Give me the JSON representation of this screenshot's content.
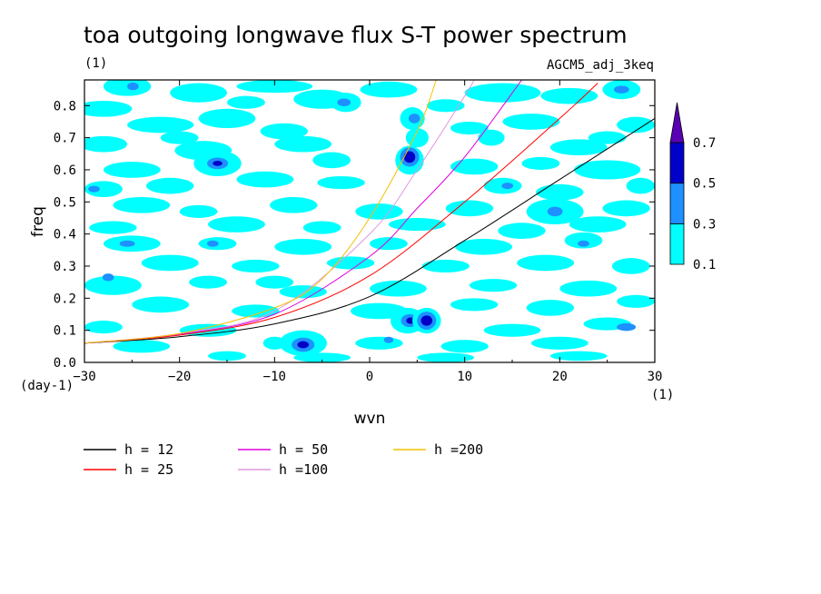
{
  "chart_data": {
    "type": "contour",
    "title": "toa outgoing longwave flux S-T power spectrum",
    "subtitle_left": "(1)",
    "subtitle_right": "AGCM5_adj_3keq",
    "xlabel": "wvn",
    "ylabel": "freq",
    "x_unit_label": "(1)",
    "y_unit_label": "(day-1)",
    "xlim": [
      -30,
      30
    ],
    "ylim": [
      0,
      0.88
    ],
    "x_ticks": [
      -30,
      -20,
      -10,
      0,
      10,
      20,
      30
    ],
    "x_tick_labels": [
      "−30",
      "−20",
      "−10",
      "0",
      "10",
      "20",
      "30"
    ],
    "y_ticks": [
      0,
      0.1,
      0.2,
      0.3,
      0.4,
      0.5,
      0.6,
      0.7,
      0.8
    ],
    "y_tick_labels": [
      "0.0",
      "0.1",
      "0.2",
      "0.3",
      "0.4",
      "0.5",
      "0.6",
      "0.7",
      "0.8"
    ],
    "contour_levels": [
      0.1,
      0.3,
      0.5,
      0.7
    ],
    "contour_level_labels": [
      "0.1",
      "0.3",
      "0.5",
      "0.7"
    ],
    "contour_colors": [
      "#00ffff",
      "#1e90ff",
      "#0000c8",
      "#5a00b4"
    ],
    "dispersion_curves": [
      {
        "name": "h = 12",
        "color": "#000000",
        "x": [
          -30,
          -20,
          -10,
          0,
          10,
          20,
          30
        ],
        "y": [
          0.06,
          0.08,
          0.12,
          0.205,
          0.38,
          0.57,
          0.76
        ]
      },
      {
        "name": "h = 25",
        "color": "#ff0000",
        "x": [
          -30,
          -20,
          -10,
          0,
          10,
          20,
          24
        ],
        "y": [
          0.06,
          0.085,
          0.14,
          0.27,
          0.5,
          0.76,
          0.87
        ]
      },
      {
        "name": "h = 50",
        "color": "#e000e0",
        "x": [
          -30,
          -20,
          -10,
          0,
          5,
          10,
          16
        ],
        "y": [
          0.06,
          0.088,
          0.15,
          0.33,
          0.48,
          0.64,
          0.88
        ]
      },
      {
        "name": "h =100",
        "color": "#dd99dd",
        "x": [
          -30,
          -20,
          -10,
          0,
          5,
          10,
          11
        ],
        "y": [
          0.06,
          0.09,
          0.16,
          0.4,
          0.6,
          0.83,
          0.88
        ]
      },
      {
        "name": "h =200",
        "color": "#f2c200",
        "x": [
          -30,
          -20,
          -10,
          -5,
          0,
          5,
          7
        ],
        "y": [
          0.06,
          0.09,
          0.17,
          0.26,
          0.45,
          0.72,
          0.88
        ]
      }
    ],
    "blobs": [
      {
        "x": -25.5,
        "y": 0.86,
        "rx": 2.5,
        "ry": 0.03,
        "level": 1
      },
      {
        "x": -24.9,
        "y": 0.86,
        "rx": 0.6,
        "ry": 0.012,
        "level": 2
      },
      {
        "x": -28,
        "y": 0.79,
        "rx": 3,
        "ry": 0.025,
        "level": 1
      },
      {
        "x": -18,
        "y": 0.84,
        "rx": 3,
        "ry": 0.03,
        "level": 1
      },
      {
        "x": -10,
        "y": 0.86,
        "rx": 4,
        "ry": 0.02,
        "level": 1
      },
      {
        "x": -5,
        "y": 0.82,
        "rx": 3,
        "ry": 0.03,
        "level": 1
      },
      {
        "x": -2.5,
        "y": 0.81,
        "rx": 1.6,
        "ry": 0.03,
        "level": 1
      },
      {
        "x": -2.7,
        "y": 0.81,
        "rx": 0.7,
        "ry": 0.012,
        "level": 2
      },
      {
        "x": 2,
        "y": 0.85,
        "rx": 3,
        "ry": 0.025,
        "level": 1
      },
      {
        "x": 14,
        "y": 0.84,
        "rx": 4,
        "ry": 0.03,
        "level": 1
      },
      {
        "x": 21,
        "y": 0.83,
        "rx": 3,
        "ry": 0.025,
        "level": 1
      },
      {
        "x": 26.5,
        "y": 0.85,
        "rx": 2,
        "ry": 0.03,
        "level": 1
      },
      {
        "x": 26.5,
        "y": 0.85,
        "rx": 0.8,
        "ry": 0.012,
        "level": 2
      },
      {
        "x": -22,
        "y": 0.74,
        "rx": 3.5,
        "ry": 0.025,
        "level": 1
      },
      {
        "x": -15,
        "y": 0.76,
        "rx": 3,
        "ry": 0.03,
        "level": 1
      },
      {
        "x": -9,
        "y": 0.72,
        "rx": 2.5,
        "ry": 0.025,
        "level": 1
      },
      {
        "x": 4.5,
        "y": 0.76,
        "rx": 1.3,
        "ry": 0.035,
        "level": 1
      },
      {
        "x": 4.7,
        "y": 0.76,
        "rx": 0.6,
        "ry": 0.015,
        "level": 2
      },
      {
        "x": 10.5,
        "y": 0.73,
        "rx": 2,
        "ry": 0.02,
        "level": 1
      },
      {
        "x": 17,
        "y": 0.75,
        "rx": 3,
        "ry": 0.025,
        "level": 1
      },
      {
        "x": 28,
        "y": 0.74,
        "rx": 2,
        "ry": 0.025,
        "level": 1
      },
      {
        "x": -28,
        "y": 0.68,
        "rx": 2.5,
        "ry": 0.025,
        "level": 1
      },
      {
        "x": -17.5,
        "y": 0.66,
        "rx": 3,
        "ry": 0.03,
        "level": 1
      },
      {
        "x": -7,
        "y": 0.68,
        "rx": 3,
        "ry": 0.025,
        "level": 1
      },
      {
        "x": 5,
        "y": 0.7,
        "rx": 1.2,
        "ry": 0.03,
        "level": 1
      },
      {
        "x": 12.8,
        "y": 0.7,
        "rx": 1.4,
        "ry": 0.025,
        "level": 1
      },
      {
        "x": 22,
        "y": 0.67,
        "rx": 3,
        "ry": 0.025,
        "level": 1
      },
      {
        "x": -16,
        "y": 0.62,
        "rx": 2.5,
        "ry": 0.04,
        "level": 1
      },
      {
        "x": -16,
        "y": 0.62,
        "rx": 1.1,
        "ry": 0.018,
        "level": 2
      },
      {
        "x": -16,
        "y": 0.62,
        "rx": 0.5,
        "ry": 0.008,
        "level": 3
      },
      {
        "x": -25,
        "y": 0.6,
        "rx": 3,
        "ry": 0.025,
        "level": 1
      },
      {
        "x": -4,
        "y": 0.63,
        "rx": 2,
        "ry": 0.025,
        "level": 1
      },
      {
        "x": 4.2,
        "y": 0.63,
        "rx": 1.5,
        "ry": 0.045,
        "level": 1
      },
      {
        "x": 4.2,
        "y": 0.64,
        "rx": 1,
        "ry": 0.03,
        "level": 2
      },
      {
        "x": 4.2,
        "y": 0.64,
        "rx": 0.6,
        "ry": 0.018,
        "level": 3
      },
      {
        "x": 11,
        "y": 0.61,
        "rx": 2.5,
        "ry": 0.025,
        "level": 1
      },
      {
        "x": 25,
        "y": 0.6,
        "rx": 3.5,
        "ry": 0.03,
        "level": 1
      },
      {
        "x": -28,
        "y": 0.54,
        "rx": 2,
        "ry": 0.025,
        "level": 1
      },
      {
        "x": -29,
        "y": 0.54,
        "rx": 0.6,
        "ry": 0.01,
        "level": 2
      },
      {
        "x": -21,
        "y": 0.55,
        "rx": 2.5,
        "ry": 0.025,
        "level": 1
      },
      {
        "x": -11,
        "y": 0.57,
        "rx": 3,
        "ry": 0.025,
        "level": 1
      },
      {
        "x": -3,
        "y": 0.56,
        "rx": 2.5,
        "ry": 0.02,
        "level": 1
      },
      {
        "x": 14,
        "y": 0.55,
        "rx": 2,
        "ry": 0.025,
        "level": 1
      },
      {
        "x": 14.5,
        "y": 0.55,
        "rx": 0.6,
        "ry": 0.01,
        "level": 2
      },
      {
        "x": 20,
        "y": 0.53,
        "rx": 2.5,
        "ry": 0.025,
        "level": 1
      },
      {
        "x": 28.5,
        "y": 0.55,
        "rx": 1.5,
        "ry": 0.025,
        "level": 1
      },
      {
        "x": -24,
        "y": 0.49,
        "rx": 3,
        "ry": 0.025,
        "level": 1
      },
      {
        "x": -18,
        "y": 0.47,
        "rx": 2,
        "ry": 0.02,
        "level": 1
      },
      {
        "x": -8,
        "y": 0.49,
        "rx": 2.5,
        "ry": 0.025,
        "level": 1
      },
      {
        "x": 1,
        "y": 0.47,
        "rx": 2.5,
        "ry": 0.025,
        "level": 1
      },
      {
        "x": 10.5,
        "y": 0.48,
        "rx": 2.5,
        "ry": 0.025,
        "level": 1
      },
      {
        "x": 19.5,
        "y": 0.47,
        "rx": 3,
        "ry": 0.04,
        "level": 1
      },
      {
        "x": 19.5,
        "y": 0.47,
        "rx": 0.8,
        "ry": 0.015,
        "level": 2
      },
      {
        "x": 27,
        "y": 0.48,
        "rx": 2.5,
        "ry": 0.025,
        "level": 1
      },
      {
        "x": -27,
        "y": 0.42,
        "rx": 2.5,
        "ry": 0.02,
        "level": 1
      },
      {
        "x": -14,
        "y": 0.43,
        "rx": 3,
        "ry": 0.025,
        "level": 1
      },
      {
        "x": -5,
        "y": 0.42,
        "rx": 2,
        "ry": 0.02,
        "level": 1
      },
      {
        "x": 5,
        "y": 0.43,
        "rx": 3,
        "ry": 0.02,
        "level": 1
      },
      {
        "x": 16,
        "y": 0.41,
        "rx": 2.5,
        "ry": 0.025,
        "level": 1
      },
      {
        "x": 24,
        "y": 0.43,
        "rx": 3,
        "ry": 0.025,
        "level": 1
      },
      {
        "x": -25,
        "y": 0.37,
        "rx": 3,
        "ry": 0.025,
        "level": 1
      },
      {
        "x": -25.5,
        "y": 0.37,
        "rx": 0.8,
        "ry": 0.01,
        "level": 2
      },
      {
        "x": -16,
        "y": 0.37,
        "rx": 2,
        "ry": 0.02,
        "level": 1
      },
      {
        "x": -16.5,
        "y": 0.37,
        "rx": 0.6,
        "ry": 0.01,
        "level": 2
      },
      {
        "x": -7,
        "y": 0.36,
        "rx": 3,
        "ry": 0.025,
        "level": 1
      },
      {
        "x": 2,
        "y": 0.37,
        "rx": 2,
        "ry": 0.02,
        "level": 1
      },
      {
        "x": 12,
        "y": 0.36,
        "rx": 3,
        "ry": 0.025,
        "level": 1
      },
      {
        "x": 22.5,
        "y": 0.38,
        "rx": 2,
        "ry": 0.025,
        "level": 1
      },
      {
        "x": 22.5,
        "y": 0.37,
        "rx": 0.6,
        "ry": 0.01,
        "level": 2
      },
      {
        "x": -21,
        "y": 0.31,
        "rx": 3,
        "ry": 0.025,
        "level": 1
      },
      {
        "x": -12,
        "y": 0.3,
        "rx": 2.5,
        "ry": 0.02,
        "level": 1
      },
      {
        "x": -2,
        "y": 0.31,
        "rx": 2.5,
        "ry": 0.02,
        "level": 1
      },
      {
        "x": 8,
        "y": 0.3,
        "rx": 2.5,
        "ry": 0.02,
        "level": 1
      },
      {
        "x": 18.5,
        "y": 0.31,
        "rx": 3,
        "ry": 0.025,
        "level": 1
      },
      {
        "x": 27.5,
        "y": 0.3,
        "rx": 2,
        "ry": 0.025,
        "level": 1
      },
      {
        "x": -27,
        "y": 0.24,
        "rx": 3,
        "ry": 0.03,
        "level": 1
      },
      {
        "x": -27.5,
        "y": 0.265,
        "rx": 0.6,
        "ry": 0.012,
        "level": 2
      },
      {
        "x": -17,
        "y": 0.25,
        "rx": 2,
        "ry": 0.02,
        "level": 1
      },
      {
        "x": -7,
        "y": 0.22,
        "rx": 2.5,
        "ry": 0.02,
        "level": 1
      },
      {
        "x": 3,
        "y": 0.23,
        "rx": 3,
        "ry": 0.025,
        "level": 1
      },
      {
        "x": 13,
        "y": 0.24,
        "rx": 2.5,
        "ry": 0.02,
        "level": 1
      },
      {
        "x": 23,
        "y": 0.23,
        "rx": 3,
        "ry": 0.025,
        "level": 1
      },
      {
        "x": -22,
        "y": 0.18,
        "rx": 3,
        "ry": 0.025,
        "level": 1
      },
      {
        "x": -12,
        "y": 0.16,
        "rx": 2.5,
        "ry": 0.02,
        "level": 1
      },
      {
        "x": 1,
        "y": 0.16,
        "rx": 3,
        "ry": 0.025,
        "level": 1
      },
      {
        "x": 11,
        "y": 0.18,
        "rx": 2.5,
        "ry": 0.02,
        "level": 1
      },
      {
        "x": 19,
        "y": 0.17,
        "rx": 2.5,
        "ry": 0.025,
        "level": 1
      },
      {
        "x": 28,
        "y": 0.19,
        "rx": 2,
        "ry": 0.02,
        "level": 1
      },
      {
        "x": 4,
        "y": 0.13,
        "rx": 1.8,
        "ry": 0.04,
        "level": 1
      },
      {
        "x": 4.2,
        "y": 0.13,
        "rx": 0.9,
        "ry": 0.02,
        "level": 2
      },
      {
        "x": 4.3,
        "y": 0.13,
        "rx": 0.45,
        "ry": 0.01,
        "level": 3
      },
      {
        "x": 6,
        "y": 0.13,
        "rx": 1.5,
        "ry": 0.04,
        "level": 1
      },
      {
        "x": 6,
        "y": 0.13,
        "rx": 1,
        "ry": 0.028,
        "level": 2
      },
      {
        "x": 6,
        "y": 0.13,
        "rx": 0.6,
        "ry": 0.016,
        "level": 3
      },
      {
        "x": -28,
        "y": 0.11,
        "rx": 2,
        "ry": 0.02,
        "level": 1
      },
      {
        "x": -17,
        "y": 0.1,
        "rx": 3,
        "ry": 0.02,
        "level": 1
      },
      {
        "x": 15,
        "y": 0.1,
        "rx": 3,
        "ry": 0.02,
        "level": 1
      },
      {
        "x": 25,
        "y": 0.12,
        "rx": 2.5,
        "ry": 0.02,
        "level": 1
      },
      {
        "x": 27,
        "y": 0.11,
        "rx": 1,
        "ry": 0.012,
        "level": 2
      },
      {
        "x": -7,
        "y": 0.06,
        "rx": 2.5,
        "ry": 0.04,
        "level": 1
      },
      {
        "x": -7,
        "y": 0.055,
        "rx": 1.2,
        "ry": 0.022,
        "level": 2
      },
      {
        "x": -7,
        "y": 0.055,
        "rx": 0.6,
        "ry": 0.011,
        "level": 3
      },
      {
        "x": -10,
        "y": 0.06,
        "rx": 1.2,
        "ry": 0.02,
        "level": 1
      },
      {
        "x": 1,
        "y": 0.06,
        "rx": 2.5,
        "ry": 0.02,
        "level": 1
      },
      {
        "x": 2,
        "y": 0.07,
        "rx": 0.5,
        "ry": 0.01,
        "level": 2
      },
      {
        "x": 10,
        "y": 0.05,
        "rx": 2.5,
        "ry": 0.02,
        "level": 1
      },
      {
        "x": 20,
        "y": 0.06,
        "rx": 3,
        "ry": 0.02,
        "level": 1
      },
      {
        "x": -24,
        "y": 0.05,
        "rx": 3,
        "ry": 0.02,
        "level": 1
      },
      {
        "x": -15,
        "y": 0.02,
        "rx": 2,
        "ry": 0.015,
        "level": 1
      },
      {
        "x": -5,
        "y": 0.015,
        "rx": 3,
        "ry": 0.015,
        "level": 1
      },
      {
        "x": 8,
        "y": 0.015,
        "rx": 3,
        "ry": 0.015,
        "level": 1
      },
      {
        "x": 22,
        "y": 0.02,
        "rx": 3,
        "ry": 0.015,
        "level": 1
      },
      {
        "x": -20,
        "y": 0.7,
        "rx": 2,
        "ry": 0.02,
        "level": 1
      },
      {
        "x": -13,
        "y": 0.81,
        "rx": 2,
        "ry": 0.02,
        "level": 1
      },
      {
        "x": 8,
        "y": 0.8,
        "rx": 2,
        "ry": 0.02,
        "level": 1
      },
      {
        "x": 18,
        "y": 0.62,
        "rx": 2,
        "ry": 0.02,
        "level": 1
      },
      {
        "x": -10,
        "y": 0.25,
        "rx": 2,
        "ry": 0.02,
        "level": 1
      },
      {
        "x": 25,
        "y": 0.7,
        "rx": 2,
        "ry": 0.02,
        "level": 1
      }
    ]
  }
}
